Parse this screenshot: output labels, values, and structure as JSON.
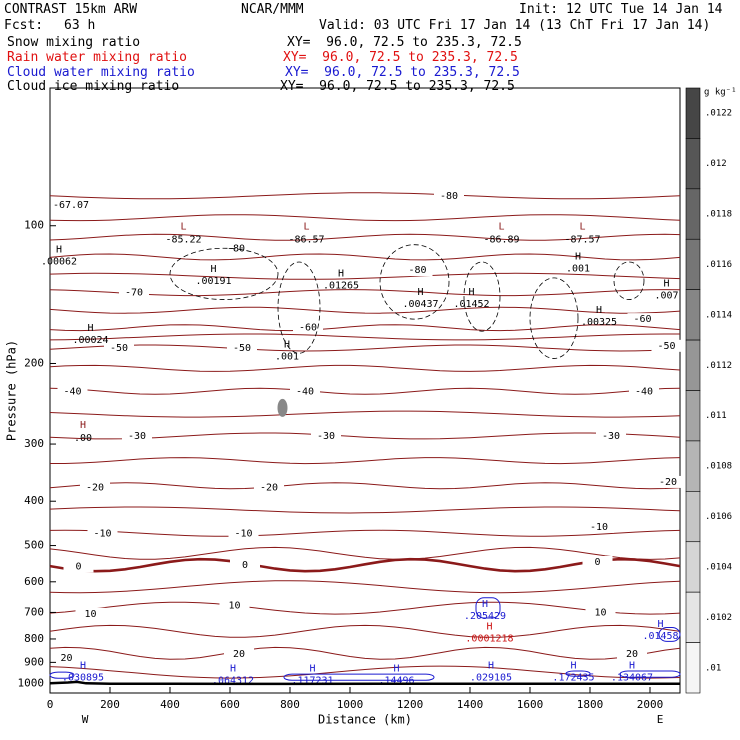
{
  "header": {
    "model": "CONTRAST 15km ARW",
    "org": "NCAR/MMM",
    "init": "Init: 12 UTC Tue 14 Jan 14",
    "fcst_label": "Fcst:",
    "fcst_value": "63 h",
    "valid": "Valid: 03 UTC Fri 17 Jan 14 (13 ChT Fri 17 Jan 14)",
    "fields": [
      {
        "name": "Snow mixing ratio",
        "xy": "XY=  96.0, 72.5 to 235.3, 72.5",
        "color": "#000000"
      },
      {
        "name": "Rain water mixing ratio",
        "xy": "XY=  96.0, 72.5 to 235.3, 72.5",
        "color": "#e01010"
      },
      {
        "name": "Cloud water mixing ratio",
        "xy": "XY=  96.0, 72.5 to 235.3, 72.5",
        "color": "#1a1ad0"
      },
      {
        "name": "Cloud ice mixing ratio",
        "xy": "XY=  96.0, 72.5 to 235.3, 72.5",
        "color": "#000000"
      }
    ]
  },
  "colorbar": {
    "unit": "g kg⁻¹",
    "labels": [
      ".0122",
      ".012",
      ".0118",
      ".0116",
      ".0114",
      ".0112",
      ".011",
      ".0108",
      ".0106",
      ".0104",
      ".0102",
      ".01"
    ]
  },
  "chart_data": {
    "type": "contour",
    "xlabel": "Distance (km)",
    "ylabel": "Pressure (hPa)",
    "xlim": [
      0,
      2100
    ],
    "ylim": [
      1050,
      50
    ],
    "y_scale": "log",
    "x_ticks": [
      0,
      200,
      400,
      600,
      800,
      1000,
      1200,
      1400,
      1600,
      1800,
      2000
    ],
    "y_ticks": [
      100,
      200,
      300,
      400,
      500,
      600,
      700,
      800,
      900,
      1000
    ],
    "x_end_labels": [
      "W",
      "E"
    ],
    "temperature_contours_degC": {
      "color": "#8b1a1a",
      "levels": [
        -80,
        -70,
        -60,
        -50,
        -40,
        -30,
        -20,
        -10,
        0,
        10,
        20
      ],
      "labels": [
        {
          "text": "-67.07",
          "x": 70,
          "p": 90
        },
        {
          "text": "-80",
          "x": 620,
          "p": 112
        },
        {
          "text": "-80",
          "x": 1330,
          "p": 86
        },
        {
          "text": "-80",
          "x": 1225,
          "p": 125
        },
        {
          "text": "-70",
          "x": 280,
          "p": 140
        },
        {
          "text": "-60",
          "x": 860,
          "p": 167
        },
        {
          "text": "-60",
          "x": 1975,
          "p": 160
        },
        {
          "text": "-50",
          "x": 230,
          "p": 185
        },
        {
          "text": "-50",
          "x": 640,
          "p": 185
        },
        {
          "text": "-50",
          "x": 2055,
          "p": 183
        },
        {
          "text": "-40",
          "x": 75,
          "p": 230
        },
        {
          "text": "-40",
          "x": 850,
          "p": 230
        },
        {
          "text": "-40",
          "x": 1980,
          "p": 230
        },
        {
          "text": "-30",
          "x": 290,
          "p": 288
        },
        {
          "text": "-30",
          "x": 920,
          "p": 288
        },
        {
          "text": "-30",
          "x": 1870,
          "p": 288
        },
        {
          "text": "-20",
          "x": 150,
          "p": 373
        },
        {
          "text": "-20",
          "x": 730,
          "p": 373
        },
        {
          "text": "-20",
          "x": 2060,
          "p": 363
        },
        {
          "text": "-10",
          "x": 175,
          "p": 470
        },
        {
          "text": "-10",
          "x": 645,
          "p": 470
        },
        {
          "text": "-10",
          "x": 1830,
          "p": 455
        },
        {
          "text": "0",
          "x": 95,
          "p": 555
        },
        {
          "text": "0",
          "x": 650,
          "p": 552
        },
        {
          "text": "0",
          "x": 1825,
          "p": 543
        },
        {
          "text": "10",
          "x": 135,
          "p": 705
        },
        {
          "text": "10",
          "x": 615,
          "p": 676
        },
        {
          "text": "10",
          "x": 1835,
          "p": 700
        },
        {
          "text": "20",
          "x": 55,
          "p": 880
        },
        {
          "text": "20",
          "x": 630,
          "p": 862
        },
        {
          "text": "20",
          "x": 1940,
          "p": 862
        }
      ]
    },
    "temperature_extrema": [
      {
        "type": "L",
        "value": "-85.22",
        "x": 445,
        "p": 105
      },
      {
        "type": "L",
        "value": "-86.57",
        "x": 855,
        "p": 105
      },
      {
        "type": "L",
        "value": "-86.89",
        "x": 1505,
        "p": 105
      },
      {
        "type": "L",
        "value": "-87.57",
        "x": 1775,
        "p": 105
      },
      {
        "type": "H",
        "value": ".00",
        "x": 110,
        "p": 285
      }
    ],
    "snow_mixing_ratio": {
      "color": "#000000",
      "extrema": [
        {
          "type": "H",
          "value": ".00062",
          "x": 30,
          "p": 118
        },
        {
          "type": "H",
          "value": ".00191",
          "x": 545,
          "p": 130
        },
        {
          "type": "H",
          "value": ".01265",
          "x": 970,
          "p": 133
        },
        {
          "type": "H",
          "value": ".00437",
          "x": 1235,
          "p": 146
        },
        {
          "type": "H",
          "value": ".01452",
          "x": 1405,
          "p": 146
        },
        {
          "type": "H",
          "value": ".001",
          "x": 1760,
          "p": 122
        },
        {
          "type": "H",
          "value": ".00325",
          "x": 1830,
          "p": 160
        },
        {
          "type": "H",
          "value": ".00024",
          "x": 135,
          "p": 175
        },
        {
          "type": "H",
          "value": ".001",
          "x": 790,
          "p": 190
        },
        {
          "type": "H",
          "value": ".007",
          "x": 2055,
          "p": 140
        }
      ]
    },
    "rain_water_mixing_ratio": {
      "color": "#cc1111",
      "extrema": [
        {
          "type": "H",
          "value": ".0001218",
          "x": 1465,
          "p": 790
        }
      ]
    },
    "cloud_water_mixing_ratio": {
      "color": "#1a1ad0",
      "extrema": [
        {
          "type": "H",
          "value": ".205429",
          "x": 1450,
          "p": 705
        },
        {
          "type": "H",
          "value": ".01458",
          "x": 2035,
          "p": 780
        },
        {
          "type": "H",
          "value": ".030895",
          "x": 110,
          "p": 962
        },
        {
          "type": "H",
          "value": ".064312",
          "x": 610,
          "p": 975
        },
        {
          "type": "H",
          "value": ".117231",
          "x": 875,
          "p": 975
        },
        {
          "type": "H",
          "value": ".14496",
          "x": 1155,
          "p": 975
        },
        {
          "type": "H",
          "value": ".029105",
          "x": 1470,
          "p": 962
        },
        {
          "type": "H",
          "value": ".172435",
          "x": 1745,
          "p": 962
        },
        {
          "type": "H",
          "value": ".134067",
          "x": 1940,
          "p": 962
        }
      ]
    },
    "surface_line": {
      "x": [
        0,
        60,
        90,
        120,
        200,
        400,
        800,
        1200,
        1600,
        2100
      ],
      "p": [
        1000,
        996,
        993,
        1000,
        1002,
        1002,
        1003,
        1002,
        1002,
        1002
      ]
    }
  }
}
